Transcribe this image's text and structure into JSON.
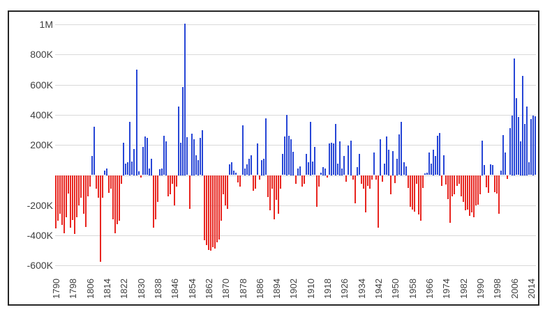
{
  "chart_data": {
    "type": "bar",
    "title": "",
    "unit": "K (thousands)",
    "grid": true,
    "legend_position": "none",
    "ylim": [
      -600,
      1000
    ],
    "x_start": 1790,
    "x_end": 2016,
    "y_ticks": [
      {
        "value": 1000,
        "label": "1M"
      },
      {
        "value": 800,
        "label": "800K"
      },
      {
        "value": 600,
        "label": "600K"
      },
      {
        "value": 400,
        "label": "400K"
      },
      {
        "value": 200,
        "label": "200K"
      },
      {
        "value": 0,
        "label": ""
      },
      {
        "value": -200,
        "label": "-200K"
      },
      {
        "value": -400,
        "label": "-400K"
      },
      {
        "value": -600,
        "label": "-600K"
      }
    ],
    "x_tick_labels": [
      "1790",
      "1798",
      "1806",
      "1814",
      "1822",
      "1830",
      "1838",
      "1846",
      "1854",
      "1862",
      "1870",
      "1878",
      "1886",
      "1894",
      "1902",
      "1910",
      "1918",
      "1926",
      "1934",
      "1942",
      "1950",
      "1958",
      "1966",
      "1974",
      "1982",
      "1990",
      "1998",
      "2006",
      "2014"
    ],
    "values": [
      -350,
      -300,
      -255,
      -330,
      -385,
      -275,
      -120,
      -345,
      -295,
      -390,
      -275,
      -200,
      -150,
      -255,
      -340,
      -140,
      -75,
      125,
      320,
      -90,
      -150,
      -575,
      -150,
      30,
      45,
      -115,
      -90,
      -290,
      -385,
      -325,
      -300,
      -55,
      215,
      75,
      85,
      355,
      90,
      175,
      700,
      25,
      -15,
      185,
      255,
      245,
      45,
      110,
      -345,
      -290,
      -175,
      40,
      45,
      260,
      225,
      -140,
      -125,
      -55,
      -200,
      -75,
      455,
      215,
      585,
      1005,
      250,
      -220,
      275,
      240,
      130,
      100,
      245,
      300,
      -430,
      -460,
      -495,
      -500,
      -475,
      -485,
      -445,
      -425,
      -300,
      -125,
      -200,
      -220,
      70,
      85,
      30,
      15,
      -45,
      -75,
      330,
      45,
      70,
      110,
      130,
      -100,
      -90,
      210,
      -30,
      100,
      110,
      375,
      -145,
      -230,
      -90,
      -290,
      -160,
      -255,
      -90,
      140,
      255,
      400,
      260,
      240,
      155,
      -55,
      45,
      60,
      -75,
      -55,
      140,
      85,
      355,
      90,
      185,
      -210,
      -75,
      15,
      55,
      45,
      -15,
      210,
      215,
      210,
      340,
      75,
      225,
      45,
      125,
      -40,
      195,
      230,
      -30,
      -185,
      55,
      140,
      -55,
      -90,
      -245,
      -70,
      -90,
      -30,
      150,
      -30,
      -345,
      240,
      -40,
      75,
      255,
      170,
      -125,
      160,
      -50,
      110,
      270,
      355,
      85,
      60,
      -85,
      -210,
      -225,
      -240,
      -55,
      -260,
      -300,
      -85,
      10,
      15,
      150,
      75,
      170,
      125,
      260,
      280,
      -70,
      130,
      -60,
      -155,
      -315,
      -140,
      -125,
      -70,
      -55,
      -140,
      -175,
      -230,
      -225,
      -270,
      -245,
      -275,
      -200,
      -195,
      -125,
      230,
      65,
      -80,
      -115,
      70,
      65,
      -110,
      -120,
      -255,
      30,
      265,
      150,
      -25,
      310,
      395,
      775,
      510,
      385,
      225,
      660,
      340,
      455,
      85,
      370,
      395,
      390
    ],
    "colors": {
      "positive": "#2746d6",
      "negative": "#e8251f",
      "gridline": "#d9d9d9",
      "axis_text": "#404040",
      "frame_border": "#262626"
    }
  }
}
